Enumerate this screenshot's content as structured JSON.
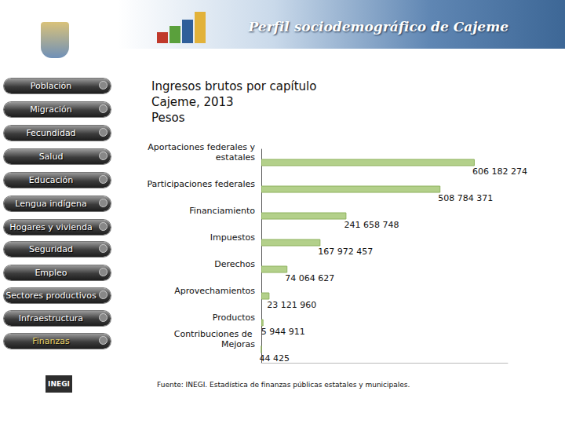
{
  "page": {
    "header": "Perfil sociodemográfico de Cajeme",
    "menu": [
      "Población",
      "Migración",
      "Fecundidad",
      "Salud",
      "Educación",
      "Lengua indígena",
      "Hogares y vivienda",
      "Seguridad",
      "Empleo",
      "Sectores productivos",
      "Infraestructura",
      "Finanzas"
    ],
    "active": "Finanzas",
    "logo": "INEGI"
  },
  "chart_data": {
    "type": "bar",
    "orientation": "horizontal",
    "title": "Ingresos brutos por capítulo\nCajeme, 2013\nPesos",
    "categories": [
      "Aportaciones federales y estatales",
      "Participaciones federales",
      "Financiamiento",
      "Impuestos",
      "Derechos",
      "Aprovechamientos",
      "Productos",
      "Contribuciones de Mejoras"
    ],
    "values": [
      606182274,
      508784371,
      241658748,
      167972457,
      74064627,
      23121960,
      5944911,
      44425
    ],
    "value_labels": [
      "606 182 274",
      "508 784 371",
      "241 658 748",
      "167 972 457",
      "74 064 627",
      "23 121 960",
      "5 944 911",
      "44 425"
    ],
    "color": "#b3d08a",
    "xlim": [
      0,
      700000000
    ],
    "data_labels": true,
    "tick_labels": "y",
    "grid": false,
    "annotations": [
      "Fuente: INEGI. Estadística de finanzas públicas estatales y municipales."
    ]
  }
}
